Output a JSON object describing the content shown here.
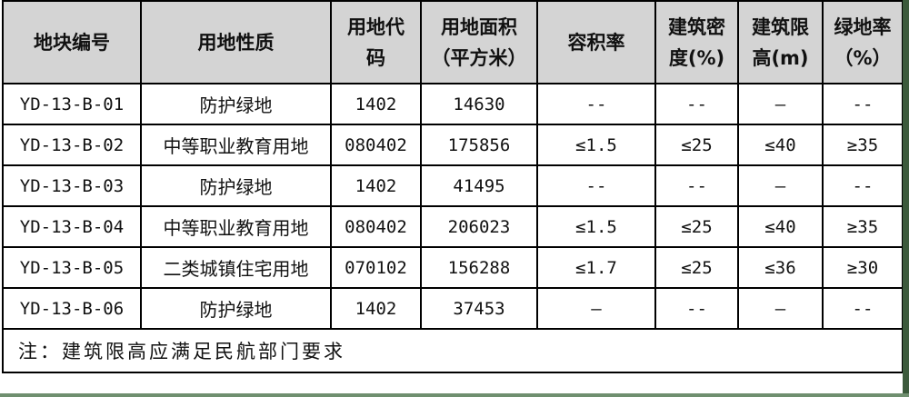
{
  "headers": [
    "地块编号",
    "用地性质",
    "用地代码",
    "用地面积（平方米）",
    "容积率",
    "建筑密度(%)",
    "建筑限高(m)",
    "绿地率（%）"
  ],
  "header_lines": [
    [
      "地块编号"
    ],
    [
      "用地性质"
    ],
    [
      "用地代",
      "码"
    ],
    [
      "用地面积",
      "（平方米）"
    ],
    [
      "容积率"
    ],
    [
      "建筑密",
      "度(%)"
    ],
    [
      "建筑限",
      "高(m)"
    ],
    [
      "绿地率",
      "（%）"
    ]
  ],
  "rows": [
    [
      "YD-13-B-01",
      "防护绿地",
      "1402",
      "14630",
      "--",
      "--",
      "—",
      "--"
    ],
    [
      "YD-13-B-02",
      "中等职业教育用地",
      "080402",
      "175856",
      "≤1.5",
      "≤25",
      "≤40",
      "≥35"
    ],
    [
      "YD-13-B-03",
      "防护绿地",
      "1402",
      "41495",
      "--",
      "--",
      "—",
      "--"
    ],
    [
      "YD-13-B-04",
      "中等职业教育用地",
      "080402",
      "206023",
      "≤1.5",
      "≤25",
      "≤40",
      "≥35"
    ],
    [
      "YD-13-B-05",
      "二类城镇住宅用地",
      "070102",
      "156288",
      "≤1.7",
      "≤25",
      "≤36",
      "≥30"
    ],
    [
      "YD-13-B-06",
      "防护绿地",
      "1402",
      "37453",
      "—",
      "--",
      "—",
      "--"
    ]
  ],
  "note": "注：建筑限高应满足民航部门要求",
  "colors": {
    "header_bg": "#d4d4d4",
    "border": "#000000",
    "edge": "#3c5a3c"
  }
}
